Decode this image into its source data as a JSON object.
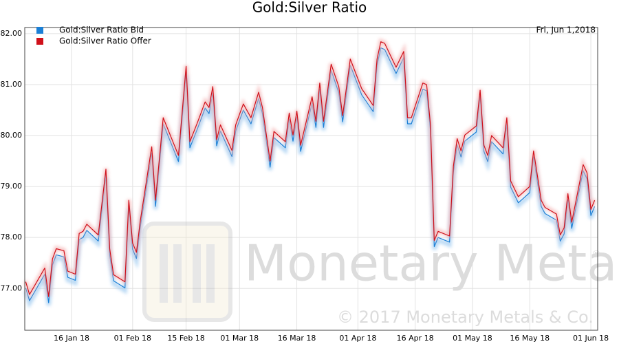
{
  "chart_data": {
    "type": "line",
    "title": "Gold:Silver Ratio",
    "annotations": [
      "Fri, Jun 1,2018",
      "Monetary Metals",
      "© 2017 Monetary Metals & Co.",
      "®"
    ],
    "x": [
      "2018-01-04",
      "2018-01-05",
      "2018-01-09",
      "2018-01-10",
      "2018-01-11",
      "2018-01-12",
      "2018-01-14",
      "2018-01-15",
      "2018-01-17",
      "2018-01-18",
      "2018-01-19",
      "2018-01-20",
      "2018-01-23",
      "2018-01-25",
      "2018-01-26",
      "2018-01-27",
      "2018-01-30",
      "2018-01-31",
      "2018-02-01",
      "2018-02-02",
      "2018-02-03",
      "2018-02-06",
      "2018-02-07",
      "2018-02-09",
      "2018-02-13",
      "2018-02-15",
      "2018-02-16",
      "2018-02-18",
      "2018-02-20",
      "2018-02-21",
      "2018-02-22",
      "2018-02-23",
      "2018-02-24",
      "2018-02-27",
      "2018-02-28",
      "2018-03-01",
      "2018-03-02",
      "2018-03-04",
      "2018-03-06",
      "2018-03-07",
      "2018-03-09",
      "2018-03-10",
      "2018-03-13",
      "2018-03-14",
      "2018-03-15",
      "2018-03-16",
      "2018-03-17",
      "2018-03-20",
      "2018-03-21",
      "2018-03-22",
      "2018-03-23",
      "2018-03-25",
      "2018-03-27",
      "2018-03-28",
      "2018-03-30",
      "2018-04-02",
      "2018-04-05",
      "2018-04-06",
      "2018-04-07",
      "2018-04-08",
      "2018-04-11",
      "2018-04-13",
      "2018-04-14",
      "2018-04-15",
      "2018-04-18",
      "2018-04-19",
      "2018-04-20",
      "2018-04-21",
      "2018-04-22",
      "2018-04-25",
      "2018-04-26",
      "2018-04-27",
      "2018-04-28",
      "2018-04-29",
      "2018-05-02",
      "2018-05-03",
      "2018-05-04",
      "2018-05-05",
      "2018-05-06",
      "2018-05-09",
      "2018-05-10",
      "2018-05-11",
      "2018-05-13",
      "2018-05-16",
      "2018-05-17",
      "2018-05-19",
      "2018-05-20",
      "2018-05-23",
      "2018-05-24",
      "2018-05-25",
      "2018-05-26",
      "2018-05-27",
      "2018-05-30",
      "2018-05-31",
      "2018-06-01",
      "2018-06-02"
    ],
    "series": [
      {
        "name": "Gold:Silver Ratio Bid",
        "color": "#1a7fd6",
        "values": [
          77.01,
          76.76,
          77.28,
          76.72,
          77.46,
          77.66,
          77.62,
          77.22,
          77.16,
          77.96,
          78.0,
          78.14,
          77.93,
          79.22,
          77.66,
          77.15,
          77.01,
          78.61,
          77.77,
          77.59,
          78.2,
          79.66,
          78.61,
          80.23,
          79.49,
          81.24,
          79.76,
          80.14,
          80.54,
          80.43,
          80.84,
          79.8,
          80.09,
          79.59,
          80.09,
          80.3,
          80.5,
          80.23,
          80.73,
          80.43,
          79.38,
          79.96,
          79.76,
          80.32,
          79.89,
          80.36,
          79.69,
          80.64,
          80.16,
          80.91,
          80.16,
          81.28,
          80.84,
          80.27,
          81.38,
          80.8,
          80.47,
          81.38,
          81.72,
          81.69,
          81.22,
          81.53,
          80.23,
          80.23,
          80.91,
          80.88,
          80.09,
          77.82,
          78.0,
          77.91,
          79.28,
          79.82,
          79.58,
          79.89,
          80.07,
          80.77,
          79.69,
          79.49,
          79.88,
          79.64,
          80.23,
          78.99,
          78.68,
          78.88,
          79.58,
          78.61,
          78.47,
          78.34,
          77.93,
          78.07,
          78.74,
          78.18,
          79.31,
          79.15,
          78.43,
          78.61
        ]
      },
      {
        "name": "Gold:Silver Ratio Offer",
        "color": "#d0101a",
        "values": [
          77.13,
          76.88,
          77.4,
          76.84,
          77.58,
          77.78,
          77.74,
          77.34,
          77.28,
          78.08,
          78.12,
          78.26,
          78.05,
          79.34,
          77.78,
          77.27,
          77.13,
          78.73,
          77.89,
          77.71,
          78.32,
          79.78,
          78.73,
          80.35,
          79.61,
          81.36,
          79.88,
          80.26,
          80.66,
          80.55,
          80.96,
          79.92,
          80.21,
          79.71,
          80.21,
          80.42,
          80.62,
          80.35,
          80.85,
          80.55,
          79.5,
          80.08,
          79.88,
          80.44,
          80.01,
          80.48,
          79.81,
          80.76,
          80.28,
          81.03,
          80.28,
          81.4,
          80.96,
          80.39,
          81.5,
          80.92,
          80.59,
          81.5,
          81.84,
          81.81,
          81.34,
          81.65,
          80.35,
          80.35,
          81.03,
          81.0,
          80.21,
          77.94,
          78.12,
          78.03,
          79.4,
          79.94,
          79.7,
          80.01,
          80.19,
          80.89,
          79.81,
          79.61,
          80.0,
          79.76,
          80.35,
          79.11,
          78.8,
          79.0,
          79.7,
          78.73,
          78.59,
          78.46,
          78.05,
          78.19,
          78.86,
          78.3,
          79.43,
          79.27,
          78.55,
          78.73
        ]
      }
    ],
    "xlim": [
      "2018-01-03T18:00",
      "2018-06-02T19:00"
    ],
    "xticks": [
      {
        "value": "2018-01-16",
        "label": "16 Jan 18"
      },
      {
        "value": "2018-02-01",
        "label": "01 Feb 18"
      },
      {
        "value": "2018-02-15",
        "label": "15 Feb 18"
      },
      {
        "value": "2018-03-01",
        "label": "01 Mar 18"
      },
      {
        "value": "2018-03-16",
        "label": "16 Mar 18"
      },
      {
        "value": "2018-04-01",
        "label": "01 Apr 18"
      },
      {
        "value": "2018-04-16",
        "label": "16 Apr 18"
      },
      {
        "value": "2018-05-01",
        "label": "01 May 18"
      },
      {
        "value": "2018-05-16",
        "label": "16 May 18"
      },
      {
        "value": "2018-06-01",
        "label": "01 Jun 18"
      }
    ],
    "ylim": [
      76.18,
      82.12
    ],
    "yticks": [
      {
        "value": 77,
        "label": "77.00"
      },
      {
        "value": 78,
        "label": "78.00"
      },
      {
        "value": 79,
        "label": "79.00"
      },
      {
        "value": 80,
        "label": "80.00"
      },
      {
        "value": 81,
        "label": "81.00"
      },
      {
        "value": 82,
        "label": "82.00"
      }
    ],
    "grid": true,
    "legend": "top-left"
  }
}
